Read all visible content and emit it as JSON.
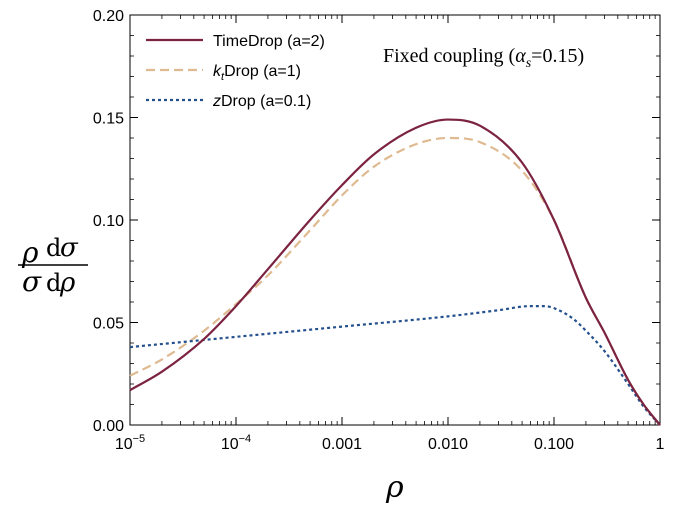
{
  "chart_data": {
    "type": "line",
    "x_scale": "log",
    "xlim": [
      1e-05,
      1
    ],
    "ylim": [
      0,
      0.2
    ],
    "grid": false,
    "legend_position": "top-left",
    "annotation": {
      "text_prefix": "Fixed coupling (",
      "alpha": "α",
      "alpha_sub": "s",
      "text_suffix": "=0.15)"
    },
    "xlabel": "ρ",
    "ylabel": {
      "num_left": "ρ",
      "num_right_d": "d",
      "num_right_sym": "σ",
      "den_left": "σ",
      "den_right_d": "d",
      "den_right_sym": "ρ"
    },
    "x_ticks": [
      {
        "value": 1e-05,
        "base": "10",
        "exp": "−5"
      },
      {
        "value": 0.0001,
        "base": "10",
        "exp": "−4"
      },
      {
        "value": 0.001,
        "label": "0.001"
      },
      {
        "value": 0.01,
        "label": "0.010"
      },
      {
        "value": 0.1,
        "label": "0.100"
      },
      {
        "value": 1,
        "label": "1"
      }
    ],
    "y_ticks": [
      {
        "value": 0,
        "label": "0.00"
      },
      {
        "value": 0.05,
        "label": "0.05"
      },
      {
        "value": 0.1,
        "label": "0.10"
      },
      {
        "value": 0.15,
        "label": "0.15"
      },
      {
        "value": 0.2,
        "label": "0.20"
      }
    ],
    "series": [
      {
        "name": "TimeDrop (a=2)",
        "color": "#7b2340",
        "dash": "solid",
        "x": [
          1e-05,
          2e-05,
          5e-05,
          0.0001,
          0.0002,
          0.0005,
          0.001,
          0.002,
          0.005,
          0.01,
          0.02,
          0.05,
          0.1,
          0.2,
          0.3,
          0.5,
          0.7,
          1
        ],
        "y": [
          0.017,
          0.026,
          0.042,
          0.058,
          0.076,
          0.1,
          0.117,
          0.132,
          0.145,
          0.149,
          0.146,
          0.128,
          0.1,
          0.062,
          0.045,
          0.022,
          0.01,
          0.0
        ]
      },
      {
        "name": "kₜDrop (a=1)",
        "legend_label": {
          "k": "k",
          "sub": "t",
          "rest": "Drop (a=1)"
        },
        "color": "#dfba91",
        "dash": "dashed",
        "x": [
          1e-05,
          2e-05,
          5e-05,
          0.0001,
          0.0002,
          0.0005,
          0.001,
          0.002,
          0.005,
          0.01,
          0.02,
          0.05,
          0.1,
          0.2,
          0.3,
          0.5,
          0.7,
          1
        ],
        "y": [
          0.024,
          0.032,
          0.046,
          0.059,
          0.073,
          0.095,
          0.112,
          0.126,
          0.137,
          0.14,
          0.138,
          0.124,
          0.1,
          0.062,
          0.045,
          0.022,
          0.01,
          0.0
        ]
      },
      {
        "name": "zDrop (a=0.1)",
        "legend_label": {
          "k": "z",
          "sub": "",
          "rest": "Drop (a=0.1)"
        },
        "color": "#24508e",
        "dash": "dotted",
        "x": [
          1e-05,
          0.0001,
          0.001,
          0.01,
          0.03,
          0.06,
          0.08,
          0.1,
          0.15,
          0.2,
          0.3,
          0.5,
          0.7,
          1
        ],
        "y": [
          0.038,
          0.043,
          0.048,
          0.053,
          0.056,
          0.058,
          0.058,
          0.057,
          0.052,
          0.046,
          0.036,
          0.02,
          0.009,
          0.0
        ]
      }
    ]
  }
}
